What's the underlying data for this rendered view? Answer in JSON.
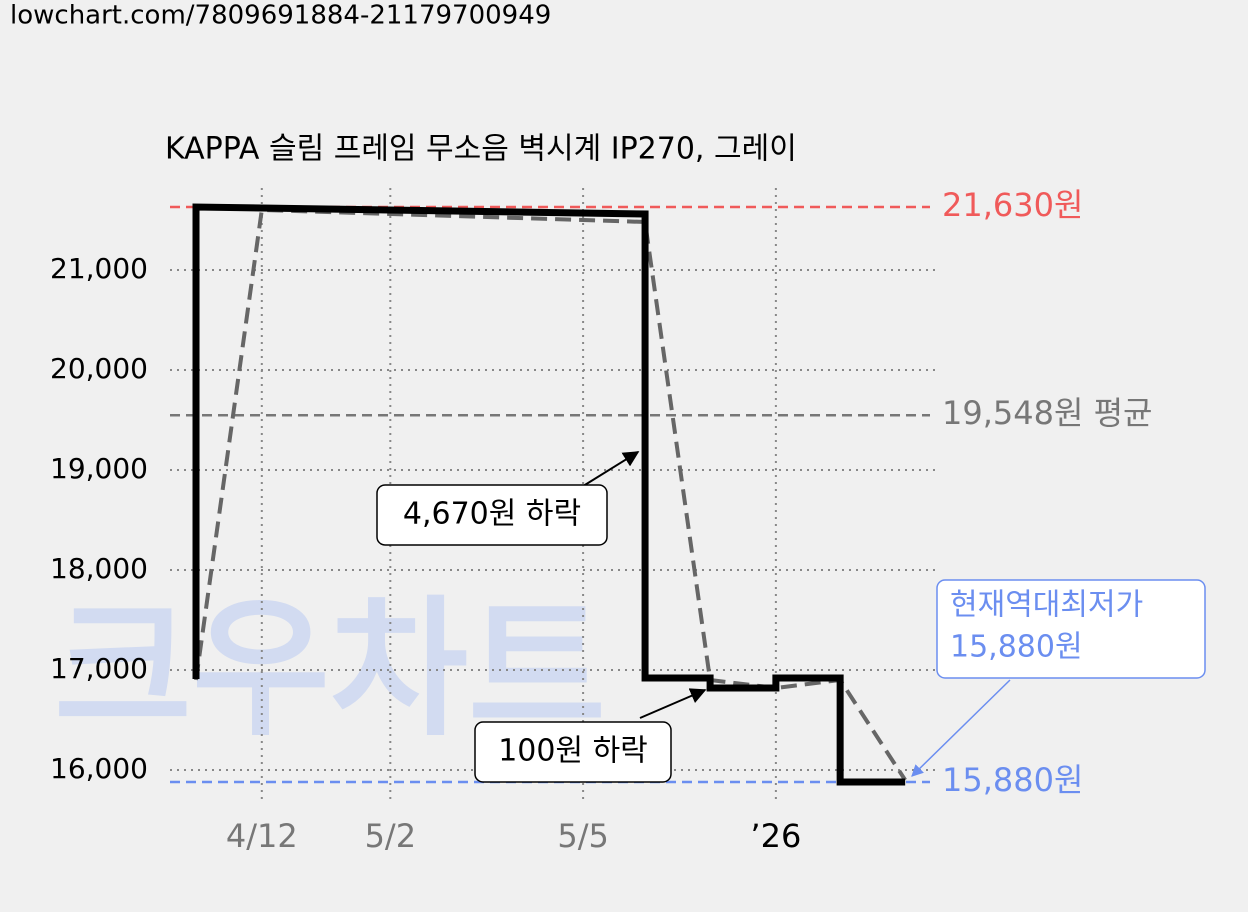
{
  "url": "lowchart.com/7809691884-21179700949",
  "chart_data": {
    "type": "line",
    "title": "KAPPA 슬림 프레임 무소음 벽시계 IP270, 그레이",
    "xlim": [
      0,
      100
    ],
    "xticks": [
      {
        "value": 12.0,
        "label": "4/12"
      },
      {
        "value": 28.8,
        "label": "5/2"
      },
      {
        "value": 54.0,
        "label": "5/5"
      },
      {
        "value": 79.2,
        "label": "’26"
      }
    ],
    "ylim": [
      15700,
      21900
    ],
    "yticks": [
      {
        "value": 16000,
        "label": "16,000"
      },
      {
        "value": 17000,
        "label": "17,000"
      },
      {
        "value": 18000,
        "label": "18,000"
      },
      {
        "value": 19000,
        "label": "19,000"
      },
      {
        "value": 20000,
        "label": "20,000"
      },
      {
        "value": 21000,
        "label": "21,000"
      }
    ],
    "grid": true,
    "series": [
      {
        "color": "#000000",
        "style": "solid",
        "x": [
          3.4,
          3.4,
          62.1,
          62.1,
          70.6,
          70.6,
          79.2,
          79.2,
          87.6,
          87.6,
          96.1
        ],
        "values": [
          16910,
          21630,
          21560,
          16920,
          16920,
          16820,
          16820,
          16920,
          16920,
          15880,
          15880
        ]
      },
      {
        "color": "#666666",
        "style": "dashed",
        "x": [
          3.4,
          12.0,
          62.1,
          70.6,
          79.2,
          87.6,
          96.1
        ],
        "values": [
          16900,
          21600,
          21480,
          16900,
          16820,
          16900,
          15900
        ]
      }
    ],
    "reference_lines": [
      {
        "value": 21630,
        "label": "21,630원",
        "color": "#f05a5a"
      },
      {
        "value": 19548,
        "label": "19,548원 평균",
        "color": "#777777"
      },
      {
        "value": 15880,
        "label": "15,880원",
        "color": "#6b8ef0"
      }
    ],
    "annotations": [
      {
        "text": "4,670원 하락"
      },
      {
        "text": "100원 하락"
      },
      {
        "lines": [
          "현재역대최저가",
          "15,880원"
        ]
      }
    ],
    "watermark": "크우차트"
  }
}
